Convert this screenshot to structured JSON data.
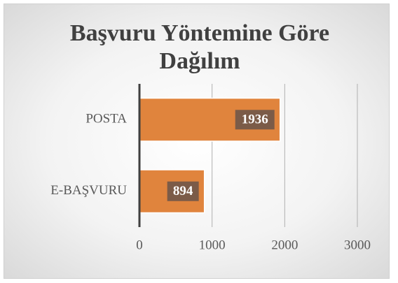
{
  "chart_data": {
    "type": "bar",
    "orientation": "horizontal",
    "title": "Başvuru Yöntemine Göre Dağılım",
    "categories": [
      "POSTA",
      "E-BAŞVURU"
    ],
    "values": [
      1936,
      894
    ],
    "color": "#e0843d",
    "xlim": [
      0,
      3000
    ],
    "xticks": [
      0,
      1000,
      2000,
      3000
    ],
    "grid": true
  }
}
